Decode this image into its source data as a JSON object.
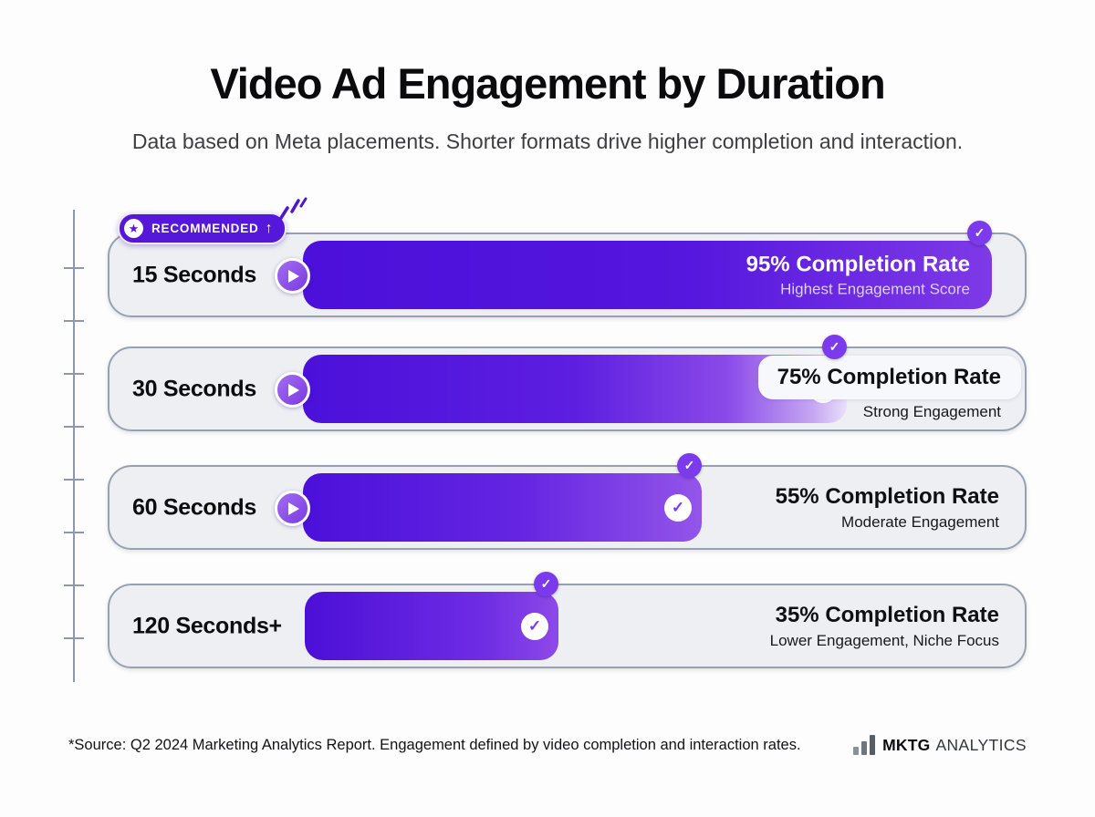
{
  "header": {
    "title": "Video Ad Engagement by Duration",
    "subtitle": "Data based on Meta placements. Shorter formats drive higher completion and interaction."
  },
  "recommended_badge": {
    "label": "RECOMMENDED",
    "arrow": "↑"
  },
  "chart_data": {
    "type": "bar",
    "orientation": "horizontal",
    "title": "Video Ad Engagement by Duration",
    "categories": [
      "15 Seconds",
      "30 Seconds",
      "60 Seconds",
      "120 Seconds+"
    ],
    "values": [
      95,
      75,
      55,
      35
    ],
    "value_labels": [
      "95% Completion Rate",
      "75% Completion Rate",
      "55% Completion Rate",
      "35% Completion Rate"
    ],
    "annotations": [
      "Highest Engagement Score",
      "Strong Engagement",
      "Moderate Engagement",
      "Lower Engagement, Niche Focus"
    ],
    "xlim": [
      0,
      100
    ],
    "recommended_category": "15 Seconds",
    "legend": "none",
    "grid": "left-ruler-ticks"
  },
  "rows": [
    {
      "duration": "15 Seconds",
      "percent": 95,
      "rate_label": "95% Completion Rate",
      "engagement_label": "Highest Engagement Score",
      "value_style": "inside-bar",
      "has_play_button": true,
      "has_inner_check": false,
      "recommended": true
    },
    {
      "duration": "30 Seconds",
      "percent": 75,
      "rate_label": "75% Completion Rate",
      "engagement_label": "Strong Engagement",
      "value_style": "label-box",
      "has_play_button": true,
      "has_inner_check": true,
      "recommended": false
    },
    {
      "duration": "60 Seconds",
      "percent": 55,
      "rate_label": "55% Completion Rate",
      "engagement_label": "Moderate Engagement",
      "value_style": "outside",
      "has_play_button": true,
      "has_inner_check": true,
      "recommended": false
    },
    {
      "duration": "120 Seconds+",
      "percent": 35,
      "rate_label": "35% Completion Rate",
      "engagement_label": "Lower Engagement, Niche Focus",
      "value_style": "outside",
      "has_play_button": false,
      "has_inner_check": true,
      "recommended": false
    }
  ],
  "icons": {
    "check": "✓",
    "star": "★",
    "play": "play-triangle"
  },
  "footer": {
    "source": "*Source: Q2 2024 Marketing Analytics Report. Engagement defined by video completion and interaction rates.",
    "brand_bold": "MKTG",
    "brand_light": "ANALYTICS"
  },
  "colors": {
    "bar_start": "#4B10DA",
    "bar_end": "#8C4AE8",
    "badge_purple": "#5517DA",
    "check_badge_purple": "#7C3AED",
    "row_background": "#EDEFF3",
    "row_border": "#98A1AF",
    "axis": "#8F98A8"
  }
}
